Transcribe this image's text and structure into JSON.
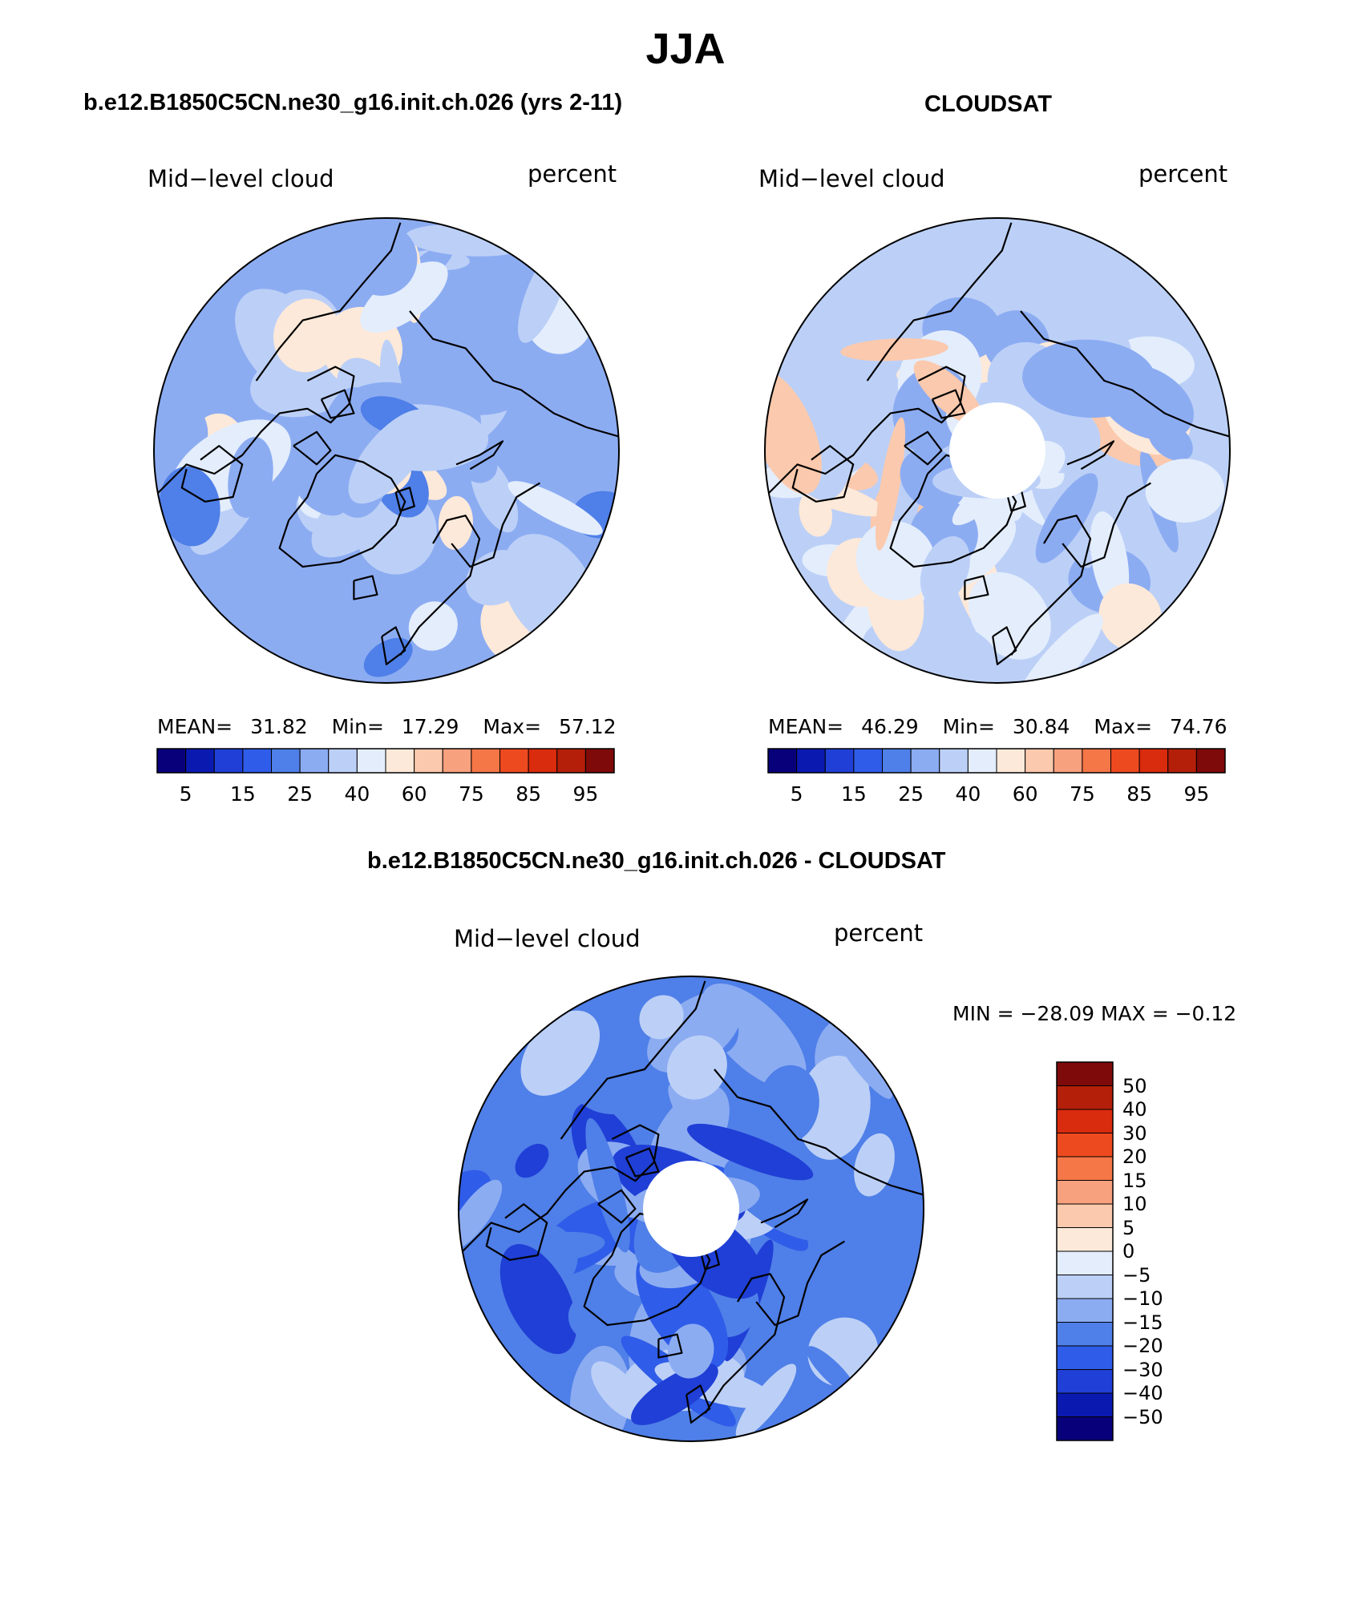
{
  "figure": {
    "title": "JJA",
    "colors": {
      "land_outline": "#000000",
      "missing": "#ffffff"
    }
  },
  "panels": [
    {
      "id": "model",
      "title": "b.e12.B1850C5CN.ne30_g16.init.ch.026 (yrs 2-11)",
      "left_label": "Mid−level cloud",
      "right_label": "percent",
      "stats": {
        "mean_label": "MEAN=",
        "mean": "31.82",
        "min_label": "Min=",
        "min": "17.29",
        "max_label": "Max=",
        "max": "57.12"
      },
      "base_level": 25,
      "has_polar_hole": false
    },
    {
      "id": "obs",
      "title": "CLOUDSAT",
      "left_label": "Mid−level cloud",
      "right_label": "percent",
      "stats": {
        "mean_label": "MEAN=",
        "mean": "46.29",
        "min_label": "Min=",
        "min": "30.84",
        "max_label": "Max=",
        "max": "74.76"
      },
      "base_level": 40,
      "has_polar_hole": true
    },
    {
      "id": "diff",
      "title": "b.e12.B1850C5CN.ne30_g16.init.ch.026 - CLOUDSAT",
      "left_label": "Mid−level cloud",
      "right_label": "percent",
      "stats_text": "MIN = −28.09  MAX =   −0.12",
      "base_level": -15,
      "has_polar_hole": true
    }
  ],
  "colorbar_abs": {
    "colors": [
      "#08007a",
      "#0a1ab0",
      "#1f3fd6",
      "#2f5ce8",
      "#4f7fe8",
      "#8cacf2",
      "#bcd0f7",
      "#e3edfc",
      "#fde9d9",
      "#fbc9ad",
      "#f8a17e",
      "#f57646",
      "#ee4a1f",
      "#d92b0d",
      "#b31f09",
      "#7f0a0a"
    ],
    "tick_labels": [
      "5",
      "15",
      "25",
      "40",
      "60",
      "75",
      "85",
      "95"
    ]
  },
  "colorbar_diff": {
    "colors": [
      "#08007a",
      "#0a1ab0",
      "#1f3fd6",
      "#2f5ce8",
      "#4f7fe8",
      "#8cacf2",
      "#bcd0f7",
      "#e3edfc",
      "#fde9d9",
      "#fbc9ad",
      "#f8a17e",
      "#f57646",
      "#ee4a1f",
      "#d92b0d",
      "#b31f09",
      "#7f0a0a"
    ],
    "tick_labels": [
      "50",
      "40",
      "30",
      "20",
      "15",
      "10",
      "5",
      "0",
      "−5",
      "−10",
      "−15",
      "−20",
      "−30",
      "−40",
      "−50"
    ]
  }
}
